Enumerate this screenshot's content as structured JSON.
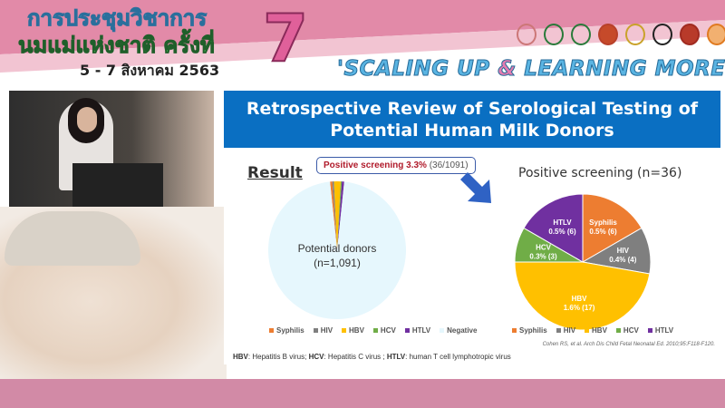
{
  "banner": {
    "line1": "การประชุมวิชาการ",
    "line2": "นมแม่แห่งชาติ ครั้งที่",
    "number": "7",
    "dates": "5 - 7 สิงหาคม 2563",
    "slogan_a": "'SCALING UP ",
    "slogan_amp": "&",
    "slogan_b": " LEARNING MORE'"
  },
  "slide": {
    "title_line1": "Retrospective Review of Serological Testing of",
    "title_line2": "Potential Human Milk Donors",
    "result_label": "Result",
    "callout_bold": "Positive screening 3.3%",
    "callout_rest": " (36/1091)",
    "footnote_parts": [
      "HBV",
      ": Hepatitis B virus; ",
      "HCV",
      ": Hepatitis C virus ; ",
      "HTLV",
      ": human T cell lymphotropic virus"
    ],
    "citation": "Cohen RS, et al. Arch Dis Child Fetal Neonatal Ed. 2010;95:F118-F120."
  },
  "chart_data": [
    {
      "type": "pie",
      "title": "",
      "center_label_1": "Potential donors",
      "center_label_2": "(n=1,091)",
      "categories": [
        "Syphilis",
        "HIV",
        "HBV",
        "HCV",
        "HTLV",
        "Negative"
      ],
      "values": [
        6,
        4,
        17,
        3,
        6,
        1055
      ],
      "colors": [
        "#ed7d31",
        "#7f7f7f",
        "#ffc000",
        "#70ad47",
        "#7030a0",
        "#e6f7fd"
      ],
      "legend": "bottom"
    },
    {
      "type": "pie",
      "title": "Positive screening (n=36)",
      "categories": [
        "Syphilis",
        "HIV",
        "HBV",
        "HCV",
        "HTLV"
      ],
      "values": [
        6,
        4,
        17,
        3,
        6
      ],
      "data_labels": [
        "0.5% (6)",
        "0.4% (4)",
        "1.6% (17)",
        "0.3% (3)",
        "0.5% (6)"
      ],
      "colors": [
        "#ed7d31",
        "#7f7f7f",
        "#ffc000",
        "#70ad47",
        "#7030a0"
      ],
      "legend": "bottom"
    }
  ]
}
